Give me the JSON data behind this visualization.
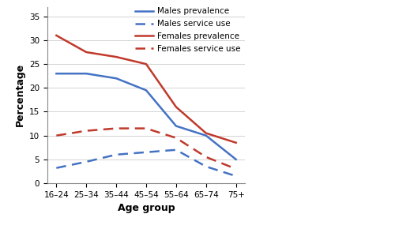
{
  "age_groups": [
    "16–24",
    "25–34",
    "35–44",
    "45–54",
    "55–64",
    "65–74",
    "75+"
  ],
  "males_prevalence": [
    23,
    23,
    22,
    19.5,
    12,
    10,
    5
  ],
  "males_service_use": [
    3.2,
    4.5,
    6.0,
    6.5,
    7.0,
    3.5,
    1.5
  ],
  "females_prevalence": [
    31,
    27.5,
    26.5,
    25,
    16,
    10.5,
    8.5
  ],
  "females_service_use": [
    10,
    11,
    11.5,
    11.5,
    9.5,
    5.5,
    3.0
  ],
  "males_color": "#4472C4",
  "females_color": "#C0392B",
  "xlabel": "Age group",
  "ylabel": "Percentage",
  "ylim": [
    0,
    37
  ],
  "yticks": [
    0,
    5,
    10,
    15,
    20,
    25,
    30,
    35
  ],
  "legend_labels": [
    "Males prevalence",
    "Males service use",
    "Females prevalence",
    "Females service use"
  ],
  "bg_color": "#ffffff",
  "line_width": 1.8
}
